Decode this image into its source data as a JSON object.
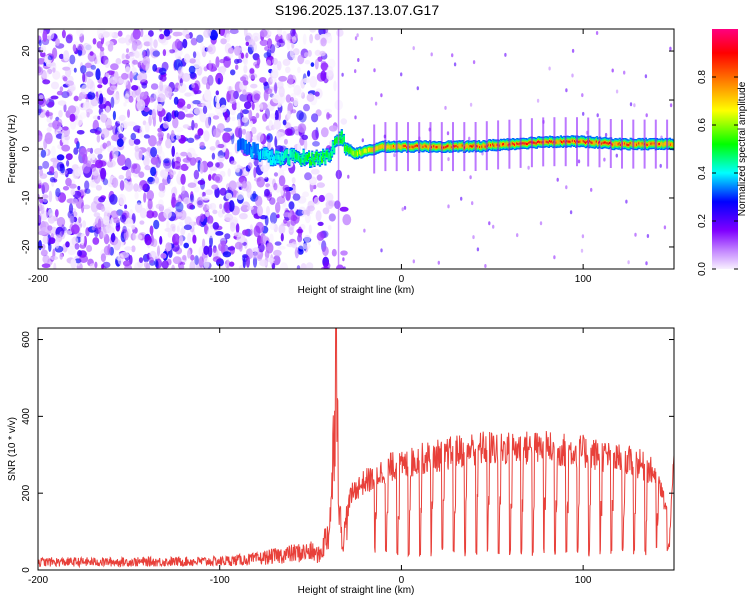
{
  "figure": {
    "title": "S196.2025.137.13.07.G17"
  },
  "chart_data": [
    {
      "type": "heatmap",
      "title": "",
      "xlabel": "Height of straight line (km)",
      "ylabel": "Frequency (Hz)",
      "xlim": [
        -200,
        150
      ],
      "ylim": [
        -24.5,
        24.5
      ],
      "x_ticks": [
        -200,
        -100,
        0,
        100
      ],
      "y_ticks": [
        -20,
        -10,
        0,
        10,
        20
      ],
      "x_tick_labels": [
        "-200",
        "-100",
        "0",
        "100"
      ],
      "y_tick_labels": [
        "-20",
        "-10",
        "0",
        "10",
        "20"
      ],
      "colorbar": {
        "label": "Normalized spectral amplitude",
        "range": [
          0,
          1
        ],
        "ticks": [
          0.0,
          0.2,
          0.4,
          0.6,
          0.8
        ],
        "tick_labels": [
          "0.0",
          "0.2",
          "0.4",
          "0.6",
          "0.8"
        ],
        "colormap": [
          "#f8f0ff",
          "#8000ff",
          "#0000ff",
          "#00ffff",
          "#00ff00",
          "#ffff00",
          "#ff8000",
          "#ff0000",
          "#ff0080"
        ]
      },
      "noise_region_x": [
        -200,
        -35
      ],
      "ridge": {
        "x": [
          -90,
          -80,
          -70,
          -60,
          -50,
          -40,
          -36,
          -33,
          -30,
          -25,
          -20,
          -10,
          0,
          20,
          40,
          60,
          80,
          100,
          120,
          150
        ],
        "freq": [
          1.0,
          -0.5,
          -2.0,
          -1.5,
          -2.0,
          -1.5,
          1.5,
          2.5,
          0.0,
          -1.0,
          -0.5,
          0.5,
          0.5,
          0.5,
          0.5,
          1.0,
          1.5,
          1.5,
          1.0,
          1.0
        ],
        "amplitude": [
          0.3,
          0.35,
          0.4,
          0.45,
          0.5,
          0.5,
          0.5,
          0.5,
          0.55,
          0.6,
          0.65,
          0.75,
          0.8,
          0.85,
          0.85,
          0.85,
          0.9,
          0.9,
          0.85,
          0.8
        ]
      }
    },
    {
      "type": "line",
      "title": "",
      "xlabel": "Height of straight line (km)",
      "ylabel": "SNR (10 * v/v)",
      "xlim": [
        -200,
        150
      ],
      "ylim": [
        0,
        630
      ],
      "x_ticks": [
        -200,
        -100,
        0,
        100
      ],
      "y_ticks": [
        0,
        200,
        400,
        600
      ],
      "x_tick_labels": [
        "-200",
        "-100",
        "0",
        "100"
      ],
      "y_tick_labels": [
        "0",
        "200",
        "400",
        "600"
      ],
      "color": "#e8403a",
      "series": [
        {
          "x": [
            -200,
            -150,
            -100,
            -80,
            -70,
            -60,
            -50,
            -45,
            -40,
            -38,
            -36,
            -34,
            -32,
            -30,
            -28,
            -25,
            -20,
            -15,
            -10,
            -5,
            0,
            5,
            10,
            20,
            30,
            40,
            50,
            60,
            70,
            80,
            90,
            100,
            110,
            120,
            130,
            140,
            145,
            148,
            150
          ],
          "values": [
            22,
            22,
            24,
            30,
            38,
            45,
            50,
            40,
            110,
            250,
            630,
            150,
            80,
            150,
            200,
            220,
            240,
            250,
            270,
            280,
            280,
            290,
            300,
            310,
            320,
            330,
            330,
            330,
            330,
            330,
            325,
            320,
            310,
            300,
            290,
            260,
            180,
            120,
            300
          ]
        }
      ],
      "dips": {
        "x_start": -15,
        "spacing_km": 6.2,
        "depth_value": 35
      }
    }
  ]
}
